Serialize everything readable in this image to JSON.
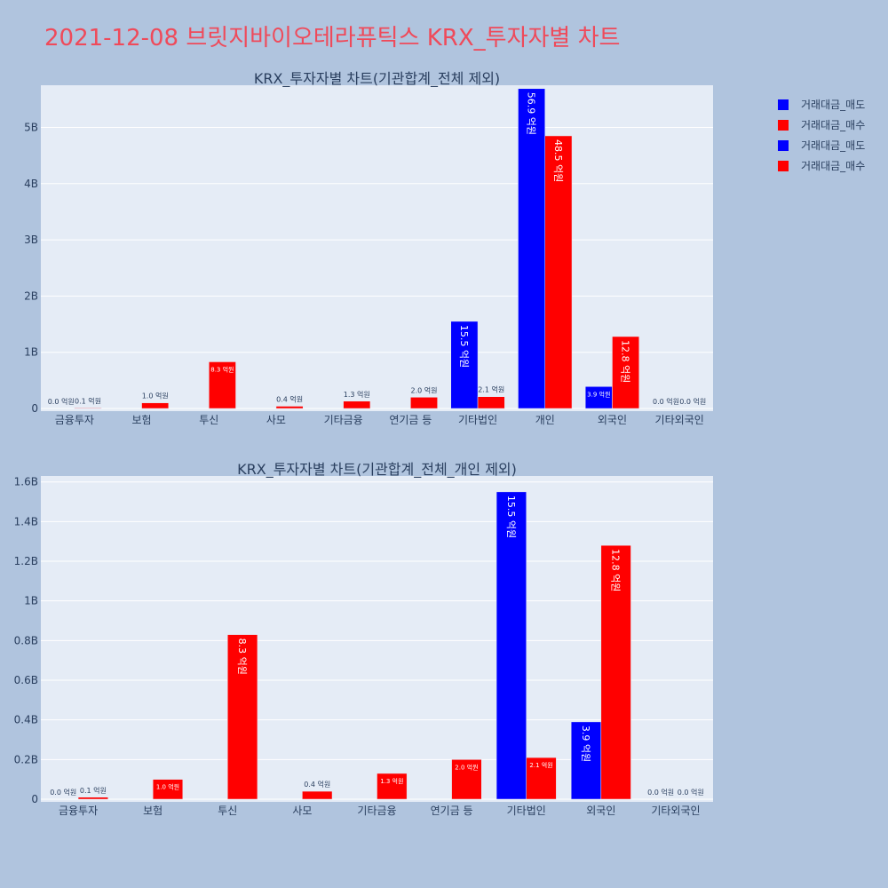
{
  "title": "2021-12-08 브릿지바이오테라퓨틱스 KRX_투자자별 차트",
  "legend": [
    {
      "label": "거래대금_매도",
      "color": "#0000ff"
    },
    {
      "label": "거래대금_매수",
      "color": "#ff0000"
    },
    {
      "label": "거래대금_매도",
      "color": "#0000ff"
    },
    {
      "label": "거래대금_매수",
      "color": "#ff0000"
    }
  ],
  "colors": {
    "sell": "#0000ff",
    "buy": "#ff0000",
    "plot_bg": "#e5ecf6",
    "page_bg": "#b0c4de"
  },
  "chart_data": [
    {
      "type": "bar",
      "title": "KRX_투자자별 차트(기관합계_전체 제외)",
      "categories": [
        "금융투자",
        "보험",
        "투신",
        "사모",
        "기타금융",
        "연기금 등",
        "기타법인",
        "개인",
        "외국인",
        "기타외국인"
      ],
      "ylim": [
        0,
        5.75
      ],
      "y_unit": "B",
      "yticks": [
        "0",
        "1B",
        "2B",
        "3B",
        "4B",
        "5B"
      ],
      "series": [
        {
          "name": "거래대금_매도",
          "values": [
            0.0,
            0.0,
            0.0,
            0.0,
            0.0,
            0.0,
            1.55,
            5.69,
            0.39,
            0.0
          ],
          "labels": [
            "0.0 억원",
            "",
            "",
            "",
            "",
            "",
            "15.5 억원",
            "56.9 억원",
            "3.9 억원",
            "0.0 억원"
          ]
        },
        {
          "name": "거래대금_매수",
          "values": [
            0.01,
            0.1,
            0.83,
            0.04,
            0.13,
            0.2,
            0.21,
            4.85,
            1.28,
            0.0
          ],
          "labels": [
            "0.1 억원",
            "1.0 억원",
            "8.3 억원",
            "0.4 억원",
            "1.3 억원",
            "2.0 억원",
            "2.1 억원",
            "48.5 억원",
            "12.8 억원",
            "0.0 억원"
          ]
        }
      ]
    },
    {
      "type": "bar",
      "title": "KRX_투자자별 차트(기관합계_전체_개인 제외)",
      "categories": [
        "금융투자",
        "보험",
        "투신",
        "사모",
        "기타금융",
        "연기금 등",
        "기타법인",
        "외국인",
        "기타외국인"
      ],
      "ylim": [
        0,
        1.63
      ],
      "y_unit": "B",
      "yticks": [
        "0",
        "0.2B",
        "0.4B",
        "0.6B",
        "0.8B",
        "1B",
        "1.2B",
        "1.4B",
        "1.6B"
      ],
      "series": [
        {
          "name": "거래대금_매도",
          "values": [
            0.0,
            0.0,
            0.0,
            0.0,
            0.0,
            0.0,
            1.55,
            0.39,
            0.0
          ],
          "labels": [
            "0.0 억원",
            "",
            "",
            "",
            "",
            "",
            "15.5 억원",
            "3.9 억원",
            "0.0 억원"
          ]
        },
        {
          "name": "거래대금_매수",
          "values": [
            0.01,
            0.1,
            0.83,
            0.04,
            0.13,
            0.2,
            0.21,
            1.28,
            0.0
          ],
          "labels": [
            "0.1 억원",
            "1.0 억원",
            "8.3 억원",
            "0.4 억원",
            "1.3 억원",
            "2.0 억원",
            "2.1 억원",
            "12.8 억원",
            "0.0 억원"
          ]
        }
      ]
    }
  ]
}
